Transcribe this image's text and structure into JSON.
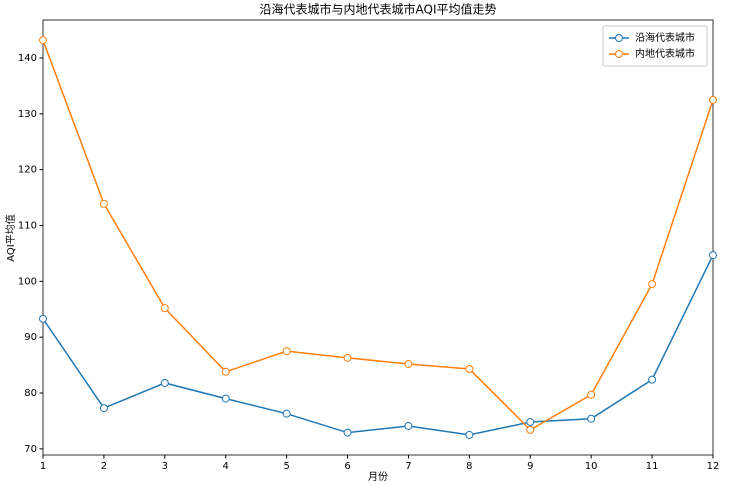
{
  "chart_data": {
    "type": "line",
    "title": "沿海代表城市与内地代表城市AQI平均值走势",
    "x_label": "月份",
    "y_label": "AQI平均值",
    "x": [
      1,
      2,
      3,
      4,
      5,
      6,
      7,
      8,
      9,
      10,
      11,
      12
    ],
    "series": [
      {
        "name": "沿海代表城市",
        "color": "#1f77b4",
        "values": [
          93.3,
          77.3,
          81.8,
          79.0,
          76.3,
          72.9,
          74.1,
          72.5,
          74.8,
          75.4,
          82.4,
          104.7
        ]
      },
      {
        "name": "内地代表城市",
        "color": "#ff7f0e",
        "values": [
          143.2,
          113.9,
          95.2,
          83.8,
          87.5,
          86.3,
          85.2,
          84.3,
          73.4,
          79.7,
          99.5,
          132.5
        ]
      }
    ],
    "xlim": [
      1,
      12
    ],
    "xticks": [
      1,
      2,
      3,
      4,
      5,
      6,
      7,
      8,
      9,
      10,
      11,
      12
    ],
    "ylim": [
      68.9,
      146.8
    ],
    "yticks": [
      70,
      80,
      90,
      100,
      110,
      120,
      130,
      140
    ],
    "legend": "upper right",
    "grid": false
  }
}
